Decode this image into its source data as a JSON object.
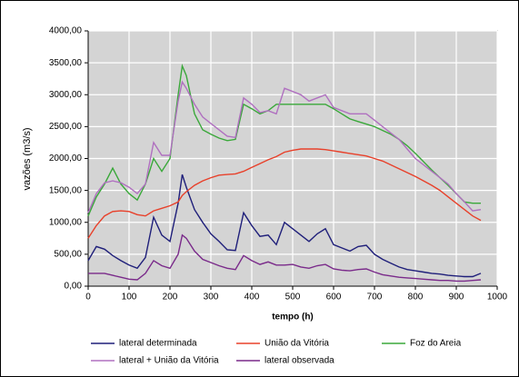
{
  "chart_data": {
    "type": "line",
    "ylabel": "vazões (m3/s)",
    "xlabel": "tempo (h)",
    "x": [
      0,
      20,
      40,
      60,
      80,
      100,
      120,
      140,
      160,
      180,
      200,
      220,
      230,
      240,
      260,
      280,
      300,
      320,
      340,
      360,
      380,
      400,
      420,
      440,
      460,
      480,
      500,
      520,
      540,
      560,
      580,
      600,
      620,
      640,
      660,
      680,
      700,
      720,
      740,
      760,
      780,
      800,
      820,
      840,
      860,
      880,
      900,
      920,
      940,
      960
    ],
    "series": [
      {
        "name": "lateral determinada",
        "color": "#1f1f7a",
        "values": [
          400,
          620,
          580,
          480,
          400,
          330,
          280,
          450,
          1080,
          800,
          700,
          1300,
          1750,
          1550,
          1200,
          1000,
          820,
          700,
          570,
          560,
          1150,
          950,
          780,
          800,
          650,
          1000,
          900,
          800,
          700,
          820,
          900,
          650,
          600,
          550,
          620,
          640,
          500,
          420,
          360,
          300,
          260,
          240,
          220,
          200,
          190,
          170,
          160,
          150,
          150,
          200
        ]
      },
      {
        "name": "União da Vitória",
        "color": "#e8402a",
        "values": [
          750,
          950,
          1100,
          1170,
          1180,
          1170,
          1120,
          1100,
          1180,
          1220,
          1260,
          1320,
          1420,
          1480,
          1580,
          1650,
          1700,
          1740,
          1750,
          1760,
          1800,
          1860,
          1920,
          1980,
          2030,
          2100,
          2130,
          2150,
          2150,
          2150,
          2140,
          2120,
          2100,
          2080,
          2060,
          2040,
          2000,
          1960,
          1900,
          1840,
          1780,
          1720,
          1650,
          1580,
          1500,
          1400,
          1300,
          1200,
          1100,
          1030
        ]
      },
      {
        "name": "Foz do Areia",
        "color": "#3aa83a",
        "values": [
          1100,
          1400,
          1600,
          1850,
          1600,
          1450,
          1350,
          1600,
          2000,
          1800,
          2000,
          3000,
          3450,
          3300,
          2700,
          2450,
          2380,
          2320,
          2280,
          2300,
          2850,
          2780,
          2700,
          2750,
          2850,
          2850,
          2850,
          2850,
          2850,
          2850,
          2850,
          2780,
          2700,
          2620,
          2580,
          2540,
          2500,
          2440,
          2380,
          2300,
          2200,
          2080,
          1950,
          1820,
          1700,
          1580,
          1450,
          1320,
          1300,
          1300
        ]
      },
      {
        "name": "lateral + União da Vitória",
        "color": "#b070c0",
        "values": [
          1150,
          1450,
          1620,
          1650,
          1620,
          1550,
          1450,
          1600,
          2250,
          2050,
          2050,
          2900,
          3200,
          3100,
          2850,
          2650,
          2550,
          2450,
          2350,
          2330,
          2950,
          2850,
          2720,
          2750,
          2700,
          3100,
          3050,
          3000,
          2900,
          2950,
          3000,
          2800,
          2750,
          2700,
          2700,
          2700,
          2600,
          2500,
          2400,
          2300,
          2150,
          2000,
          1900,
          1800,
          1700,
          1600,
          1450,
          1320,
          1180,
          1200
        ]
      },
      {
        "name": "lateral observada",
        "color": "#7a2a8a",
        "values": [
          200,
          200,
          200,
          170,
          140,
          110,
          100,
          200,
          400,
          320,
          280,
          500,
          800,
          750,
          550,
          420,
          370,
          320,
          280,
          260,
          480,
          400,
          340,
          380,
          330,
          330,
          340,
          300,
          280,
          320,
          340,
          270,
          250,
          240,
          260,
          270,
          220,
          180,
          160,
          140,
          130,
          120,
          110,
          100,
          90,
          90,
          80,
          80,
          90,
          100
        ]
      }
    ],
    "xlim": [
      0,
      1000
    ],
    "xticks": [
      0,
      100,
      200,
      300,
      400,
      500,
      600,
      700,
      800,
      900,
      1000
    ],
    "ylim": [
      0,
      4000
    ],
    "yticks": [
      {
        "value": 0,
        "label": "0,00"
      },
      {
        "value": 500,
        "label": "500,00"
      },
      {
        "value": 1000,
        "label": "1000,00"
      },
      {
        "value": 1500,
        "label": "1500,00"
      },
      {
        "value": 2000,
        "label": "2000,00"
      },
      {
        "value": 2500,
        "label": "2500,00"
      },
      {
        "value": 3000,
        "label": "3000,00"
      },
      {
        "value": 3500,
        "label": "3500,00"
      },
      {
        "value": 4000,
        "label": "4000,00"
      }
    ],
    "grid": true,
    "legend": "bottom"
  }
}
